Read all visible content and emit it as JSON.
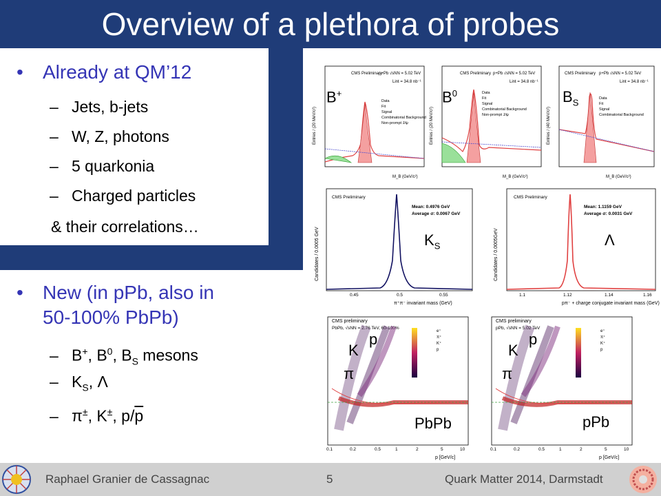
{
  "slide": {
    "title": "Overview of a plethora of probes",
    "bullet1": "Already at QM’12",
    "subs1": [
      "Jets, b-jets",
      "W, Z, photons",
      "5 quarkonia",
      "Charged particles"
    ],
    "sub1_tail": "& their correlations…",
    "bullet2_line1": "New (in pPb, also in",
    "bullet2_line2": "50-100% PbPb)",
    "bmesons": {
      "b": "B",
      "plus": "+",
      "zero": "0",
      "s": "S",
      "tail": " mesons"
    },
    "ks_lambda": {
      "k": "K",
      "s": "S",
      "lambda": ", Λ"
    },
    "pik": {
      "text": "π",
      "pm": "±",
      "k": "K",
      "slash": "p/",
      "pbar": "p"
    }
  },
  "plots": {
    "bplus": {
      "label": "B",
      "sup": "+",
      "header": "CMS Preliminary",
      "coll": "p+Pb √sNN = 5.02 TeV",
      "lumi": "Lint = 34.8 nb⁻¹",
      "xlabel": "M_B (GeV/c²)",
      "ylabel": "Entries / (20 MeV/c²)",
      "legend": [
        "Data",
        "Fit",
        "Signal",
        "Combinatorial Background",
        "Non-prompt J/ψ"
      ]
    },
    "bzero": {
      "label": "B",
      "sup": "0",
      "header": "CMS Preliminary",
      "coll": "p+Pb √sNN = 5.02 TeV",
      "lumi": "Lint = 34.8 nb⁻¹",
      "xlabel": "M_B (GeV/c²)",
      "ylabel": "Entries / (20 MeV/c²)",
      "legend": [
        "Data",
        "Fit",
        "Signal",
        "Combinatorial Background",
        "Non-prompt J/ψ"
      ]
    },
    "bs": {
      "label": "B",
      "sub": "S",
      "header": "CMS Preliminary",
      "coll": "p+Pb √sNN = 5.02 TeV",
      "lumi": "Lint = 34.8 nb⁻¹",
      "xlabel": "M_B (GeV/c²)",
      "ylabel": "Entries / (40 MeV/c²)",
      "legend": [
        "Data",
        "Fit",
        "Signal",
        "Combinatorial Background"
      ]
    },
    "ks": {
      "label": "K",
      "sub": "S",
      "header": "CMS Preliminary",
      "mean": "Mean: 0.4976 GeV",
      "sigma": "Average σ: 0.0067 GeV",
      "xlabel": "π⁺π⁻ invariant mass (GeV)",
      "ylabel": "Candidates / 0.0005 GeV",
      "ticks": [
        "0.45",
        "0.5",
        "0.55"
      ]
    },
    "lambda": {
      "label": "Λ",
      "header": "CMS Preliminary",
      "mean": "Mean: 1.1159 GeV",
      "sigma": "Average σ: 0.0031 GeV",
      "xlabel": "pπ⁻ + charge conjugate invariant mass (GeV)",
      "ylabel": "Candidates / 0.0005GeV",
      "ticks": [
        "1.1",
        "1.12",
        "1.14",
        "1.16"
      ]
    },
    "dedx_pbpb": {
      "label": "PbPb",
      "header": "CMS preliminary",
      "coll": "PbPb, √sNN = 2.76 TeV, 60-100%",
      "pi": "π",
      "k": "K",
      "p": "p",
      "xlabel": "p [GeV/c]",
      "legend": [
        "e⁺",
        "π⁺",
        "K⁺",
        "p"
      ],
      "xticks": [
        "0.1",
        "0.2",
        "0.5",
        "1",
        "2",
        "5",
        "10"
      ]
    },
    "dedx_ppb": {
      "label": "pPb",
      "header": "CMS preliminary",
      "coll": "pPb, √sNN = 5.02 TeV",
      "pi": "π",
      "k": "K",
      "p": "p",
      "xlabel": "p [GeV/c]",
      "legend": [
        "e⁺",
        "π⁺",
        "K⁺",
        "p"
      ],
      "xticks": [
        "0.1",
        "0.2",
        "0.5",
        "1",
        "2",
        "5",
        "10"
      ]
    }
  },
  "footer": {
    "author": "Raphael Granier de Cassagnac",
    "page": "5",
    "conf": "Quark Matter 2014, Darmstadt"
  },
  "colors": {
    "band": "#1f3c78",
    "bullet": "#3535b5",
    "footer": "#d0d0d0"
  }
}
